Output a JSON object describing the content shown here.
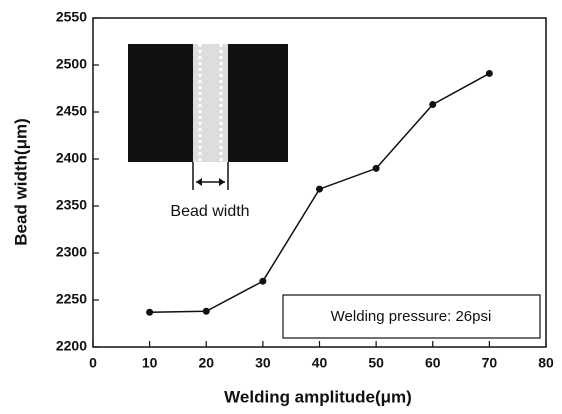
{
  "chart_data": {
    "type": "line",
    "x_label": "Welding amplitude(μm)",
    "y_label": "Bead width(μm)",
    "x": [
      10,
      20,
      30,
      40,
      50,
      60,
      70
    ],
    "series": [
      {
        "color": "#111111",
        "values": [
          2237,
          2238,
          2270,
          2368,
          2390,
          2458,
          2491
        ]
      }
    ],
    "xlim": [
      0,
      80
    ],
    "xticks": [
      0,
      10,
      20,
      30,
      40,
      50,
      60,
      70,
      80
    ],
    "ylim": [
      2200,
      2550
    ],
    "yticks": [
      2200,
      2250,
      2300,
      2350,
      2400,
      2450,
      2500,
      2550
    ],
    "inset_label": "Bead width",
    "annotation": "Welding pressure: 26psi"
  }
}
